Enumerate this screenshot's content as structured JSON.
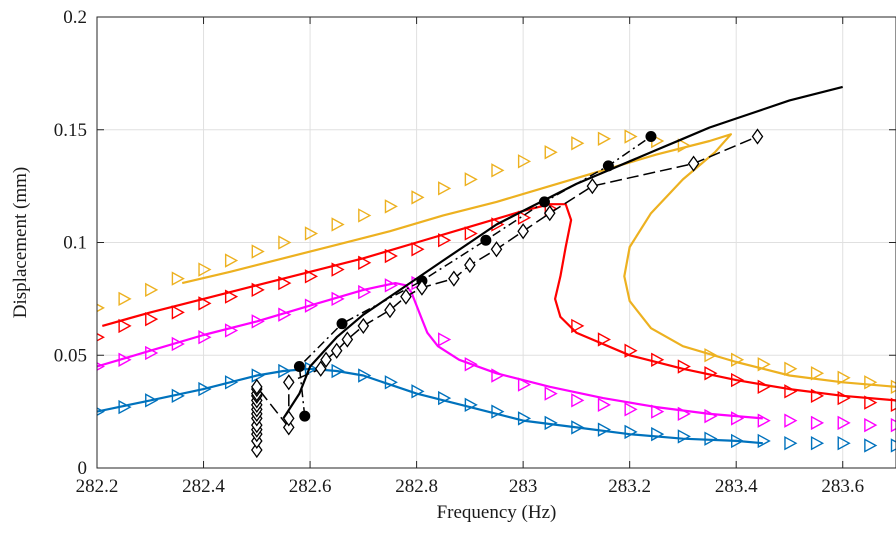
{
  "chart_data": {
    "type": "line",
    "title": "",
    "xlabel": "Frequency (Hz)",
    "ylabel": "Displacement (mm)",
    "xlim": [
      282.2,
      283.7
    ],
    "ylim": [
      0,
      0.2
    ],
    "xticks": [
      "282.2",
      "282.4",
      "282.6",
      "282.8",
      "283",
      "283.2",
      "283.4",
      "283.6"
    ],
    "yticks": [
      "0",
      "0.05",
      "0.1",
      "0.15",
      "0.2"
    ],
    "xtick_values": [
      282.2,
      282.4,
      282.6,
      282.8,
      283.0,
      283.2,
      283.4,
      283.6
    ],
    "ytick_values": [
      0,
      0.05,
      0.1,
      0.15,
      0.2
    ],
    "grid": true,
    "legend": "none",
    "colors": {
      "blue": "#0072BD",
      "magenta": "#FF00FF",
      "red": "#FF0000",
      "orange": "#EDB120",
      "black": "#000000"
    },
    "series": [
      {
        "color": "#0072BD",
        "style": "solid",
        "x": [
          282.2,
          282.3,
          282.4,
          282.5,
          282.55,
          282.6,
          282.65,
          282.7,
          282.75,
          282.8,
          282.9,
          283.0,
          283.1,
          283.2,
          283.3,
          283.4,
          283.45
        ],
        "y": [
          0.025,
          0.03,
          0.035,
          0.041,
          0.043,
          0.044,
          0.043,
          0.041,
          0.037,
          0.033,
          0.027,
          0.021,
          0.018,
          0.015,
          0.013,
          0.012,
          0.011
        ]
      },
      {
        "color": "#0072BD",
        "style": "markers",
        "x": [
          282.2,
          282.25,
          282.3,
          282.35,
          282.4,
          282.45,
          282.5,
          282.55,
          282.6,
          282.65,
          282.7,
          282.75,
          282.8,
          282.85,
          282.9,
          282.95,
          283.0,
          283.05,
          283.1,
          283.15,
          283.2,
          283.25,
          283.3,
          283.35,
          283.4,
          283.45,
          283.5,
          283.55,
          283.6,
          283.65,
          283.7
        ],
        "y": [
          0.025,
          0.027,
          0.03,
          0.032,
          0.035,
          0.038,
          0.041,
          0.043,
          0.044,
          0.043,
          0.041,
          0.038,
          0.034,
          0.031,
          0.028,
          0.025,
          0.022,
          0.02,
          0.018,
          0.017,
          0.016,
          0.015,
          0.014,
          0.013,
          0.012,
          0.012,
          0.011,
          0.011,
          0.011,
          0.01,
          0.01
        ]
      },
      {
        "color": "#FF00FF",
        "style": "solid",
        "x": [
          282.2,
          282.3,
          282.4,
          282.5,
          282.6,
          282.7,
          282.76,
          282.78,
          282.79,
          282.8,
          282.81,
          282.82,
          282.84,
          282.88,
          282.95,
          283.05,
          283.15,
          283.25,
          283.35,
          283.45
        ],
        "y": [
          0.045,
          0.052,
          0.059,
          0.065,
          0.072,
          0.079,
          0.082,
          0.081,
          0.078,
          0.072,
          0.066,
          0.06,
          0.054,
          0.048,
          0.042,
          0.036,
          0.031,
          0.027,
          0.024,
          0.022
        ]
      },
      {
        "color": "#FF00FF",
        "style": "markers",
        "x": [
          282.2,
          282.25,
          282.3,
          282.35,
          282.4,
          282.45,
          282.5,
          282.55,
          282.6,
          282.65,
          282.7,
          282.75,
          282.8,
          282.85,
          282.9,
          282.95,
          283.0,
          283.05,
          283.1,
          283.15,
          283.2,
          283.25,
          283.3,
          283.35,
          283.4,
          283.45,
          283.5,
          283.55,
          283.6,
          283.65,
          283.7
        ],
        "y": [
          0.045,
          0.048,
          0.051,
          0.055,
          0.058,
          0.061,
          0.065,
          0.068,
          0.072,
          0.075,
          0.078,
          0.081,
          0.082,
          0.057,
          0.046,
          0.041,
          0.037,
          0.033,
          0.03,
          0.028,
          0.026,
          0.025,
          0.024,
          0.023,
          0.022,
          0.021,
          0.021,
          0.02,
          0.02,
          0.019,
          0.019
        ]
      },
      {
        "color": "#FF0000",
        "style": "solid",
        "x": [
          282.21,
          282.3,
          282.4,
          282.5,
          282.6,
          282.7,
          282.8,
          282.9,
          283.0,
          283.05,
          283.08,
          283.09,
          283.08,
          283.07,
          283.06,
          283.07,
          283.1,
          283.15,
          283.2,
          283.3,
          283.4,
          283.5,
          283.6,
          283.7
        ],
        "y": [
          0.063,
          0.069,
          0.075,
          0.081,
          0.087,
          0.093,
          0.1,
          0.107,
          0.114,
          0.117,
          0.117,
          0.11,
          0.098,
          0.085,
          0.075,
          0.067,
          0.06,
          0.055,
          0.05,
          0.044,
          0.039,
          0.035,
          0.032,
          0.03
        ]
      },
      {
        "color": "#FF0000",
        "style": "markers",
        "x": [
          282.2,
          282.25,
          282.3,
          282.35,
          282.4,
          282.45,
          282.5,
          282.55,
          282.6,
          282.65,
          282.7,
          282.75,
          282.8,
          282.85,
          282.9,
          282.95,
          283.0,
          283.05,
          283.1,
          283.15,
          283.2,
          283.25,
          283.3,
          283.35,
          283.4,
          283.45,
          283.5,
          283.55,
          283.6,
          283.65,
          283.7
        ],
        "y": [
          0.058,
          0.063,
          0.066,
          0.069,
          0.073,
          0.076,
          0.079,
          0.082,
          0.085,
          0.088,
          0.091,
          0.094,
          0.097,
          0.101,
          0.104,
          0.108,
          0.111,
          0.115,
          0.063,
          0.057,
          0.052,
          0.048,
          0.045,
          0.042,
          0.039,
          0.036,
          0.034,
          0.032,
          0.031,
          0.029,
          0.028
        ]
      },
      {
        "color": "#EDB120",
        "style": "solid",
        "x": [
          282.36,
          282.45,
          282.55,
          282.65,
          282.75,
          282.85,
          282.95,
          283.05,
          283.15,
          283.25,
          283.35,
          283.39,
          283.36,
          283.3,
          283.24,
          283.2,
          283.19,
          283.2,
          283.24,
          283.3,
          283.4,
          283.5,
          283.6,
          283.7
        ],
        "y": [
          0.082,
          0.087,
          0.093,
          0.099,
          0.105,
          0.112,
          0.118,
          0.125,
          0.132,
          0.139,
          0.145,
          0.148,
          0.14,
          0.128,
          0.113,
          0.098,
          0.085,
          0.074,
          0.062,
          0.054,
          0.047,
          0.041,
          0.038,
          0.036
        ]
      },
      {
        "color": "#EDB120",
        "style": "markers",
        "x": [
          282.2,
          282.25,
          282.3,
          282.35,
          282.4,
          282.45,
          282.5,
          282.55,
          282.6,
          282.65,
          282.7,
          282.75,
          282.8,
          282.85,
          282.9,
          282.95,
          283.0,
          283.05,
          283.1,
          283.15,
          283.2,
          283.25,
          283.3,
          283.35,
          283.4,
          283.45,
          283.5,
          283.55,
          283.6,
          283.65,
          283.7
        ],
        "y": [
          0.071,
          0.075,
          0.079,
          0.084,
          0.088,
          0.092,
          0.096,
          0.1,
          0.104,
          0.108,
          0.112,
          0.116,
          0.12,
          0.124,
          0.128,
          0.132,
          0.136,
          0.14,
          0.144,
          0.146,
          0.147,
          0.145,
          0.143,
          0.05,
          0.048,
          0.046,
          0.044,
          0.042,
          0.04,
          0.038,
          0.036
        ]
      },
      {
        "color": "#000000",
        "style": "solid",
        "x": [
          282.55,
          282.58,
          282.6,
          282.65,
          282.7,
          282.75,
          282.8,
          282.85,
          282.9,
          282.95,
          283.0,
          283.05,
          283.1,
          283.15,
          283.2,
          283.25,
          283.3,
          283.35,
          283.4,
          283.45,
          283.5,
          283.55,
          283.6
        ],
        "y": [
          0.022,
          0.033,
          0.045,
          0.058,
          0.068,
          0.076,
          0.084,
          0.092,
          0.1,
          0.108,
          0.114,
          0.12,
          0.126,
          0.131,
          0.136,
          0.141,
          0.146,
          0.151,
          0.155,
          0.159,
          0.163,
          0.166,
          0.169
        ]
      },
      {
        "color": "#000000",
        "style": "dashdot-dots",
        "x": [
          282.59,
          282.58,
          282.66,
          282.81,
          282.93,
          283.04,
          283.16,
          283.24
        ],
        "y": [
          0.023,
          0.045,
          0.064,
          0.083,
          0.101,
          0.118,
          0.134,
          0.147
        ]
      },
      {
        "color": "#000000",
        "style": "dashed-diamonds",
        "x": [
          282.5,
          282.5,
          282.5,
          282.5,
          282.5,
          282.5,
          282.5,
          282.5,
          282.5,
          282.5,
          282.5,
          282.5,
          282.5,
          282.5,
          282.56,
          282.56,
          282.56,
          282.62,
          282.63,
          282.65,
          282.67,
          282.7,
          282.75,
          282.78,
          282.81,
          282.87,
          282.9,
          282.95,
          283.0,
          283.05,
          283.13,
          283.32,
          283.44
        ],
        "y": [
          0.008,
          0.012,
          0.015,
          0.017,
          0.019,
          0.022,
          0.024,
          0.026,
          0.028,
          0.03,
          0.032,
          0.033,
          0.035,
          0.036,
          0.018,
          0.022,
          0.038,
          0.044,
          0.048,
          0.052,
          0.057,
          0.063,
          0.07,
          0.076,
          0.08,
          0.084,
          0.09,
          0.097,
          0.105,
          0.113,
          0.125,
          0.135,
          0.147
        ]
      }
    ]
  }
}
